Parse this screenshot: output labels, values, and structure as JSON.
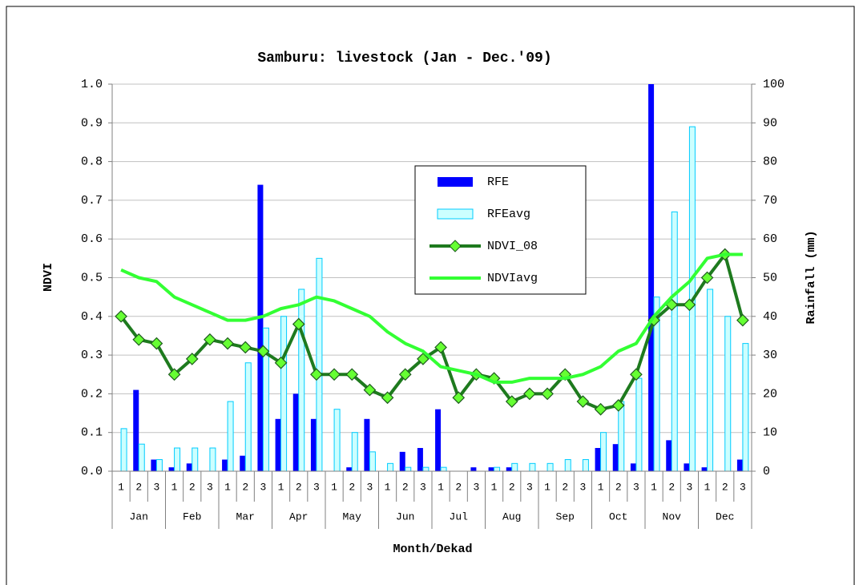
{
  "chart_data": {
    "type": "bar-line",
    "title": "Samburu: livestock (Jan - Dec.'09)",
    "x_label": "Month/Dekad",
    "y_label": "NDVI",
    "y2_label": "Rainfall (mm)",
    "categories": [
      "1",
      "2",
      "3",
      "1",
      "2",
      "3",
      "1",
      "2",
      "3",
      "1",
      "2",
      "3",
      "1",
      "2",
      "3",
      "1",
      "2",
      "3",
      "1",
      "2",
      "3",
      "1",
      "2",
      "3",
      "1",
      "2",
      "3",
      "1",
      "2",
      "3",
      "1",
      "2",
      "3",
      "1",
      "2",
      "3"
    ],
    "months": [
      "Jan",
      "Feb",
      "Mar",
      "Apr",
      "May",
      "Jun",
      "Jul",
      "Aug",
      "Sep",
      "Oct",
      "Nov",
      "Dec"
    ],
    "ylim": [
      0,
      1
    ],
    "yticks": [
      {
        "value": 0,
        "label": "0.0"
      },
      0.1,
      0.2,
      0.3,
      0.4,
      0.5,
      0.6,
      0.7,
      0.8,
      0.9,
      {
        "value": 1,
        "label": "1.0"
      }
    ],
    "y2lim": [
      0,
      100
    ],
    "y2ticks": [
      0,
      10,
      20,
      30,
      40,
      50,
      60,
      70,
      80,
      90,
      100
    ],
    "grid": true,
    "series": [
      {
        "name": "RFE",
        "kind": "bar",
        "axis": "y2",
        "color": "#0000ff",
        "values": [
          0,
          21,
          3,
          1,
          2,
          0,
          3,
          4,
          74,
          13.5,
          20,
          13.5,
          0,
          1,
          13.5,
          0,
          5,
          6,
          16,
          0,
          1,
          1,
          1,
          0,
          0,
          0,
          0,
          6,
          7,
          2,
          100,
          8,
          2,
          1,
          0,
          3
        ]
      },
      {
        "name": "RFEavg",
        "kind": "bar",
        "axis": "y2",
        "color": "#ccffff",
        "values": [
          11,
          7,
          3,
          6,
          6,
          6,
          18,
          28,
          37,
          40,
          47,
          55,
          16,
          10,
          5,
          2,
          1,
          1,
          1,
          0,
          0,
          1,
          2,
          2,
          2,
          3,
          3,
          10,
          18,
          24,
          45,
          67,
          89,
          47,
          40,
          33
        ]
      },
      {
        "name": "NDVI_08",
        "kind": "line-marker",
        "color": "#1e7a1e",
        "values": [
          0.4,
          0.34,
          0.33,
          0.25,
          0.29,
          0.34,
          0.33,
          0.32,
          0.31,
          0.28,
          0.38,
          0.25,
          0.25,
          0.25,
          0.21,
          0.19,
          0.25,
          0.29,
          0.32,
          0.19,
          0.25,
          0.24,
          0.18,
          0.2,
          0.2,
          0.25,
          0.18,
          0.16,
          0.17,
          0.25,
          0.39,
          0.43,
          0.43,
          0.5,
          0.56,
          0.39
        ]
      },
      {
        "name": "NDVIavg",
        "kind": "line",
        "color": "#33ff33",
        "values": [
          0.52,
          0.5,
          0.49,
          0.45,
          0.43,
          0.41,
          0.39,
          0.39,
          0.4,
          0.42,
          0.43,
          0.45,
          0.44,
          0.42,
          0.4,
          0.36,
          0.33,
          0.31,
          0.27,
          0.26,
          0.25,
          0.23,
          0.23,
          0.24,
          0.24,
          0.24,
          0.25,
          0.27,
          0.31,
          0.33,
          0.4,
          0.45,
          0.49,
          0.55,
          0.56,
          0.56
        ]
      }
    ]
  }
}
